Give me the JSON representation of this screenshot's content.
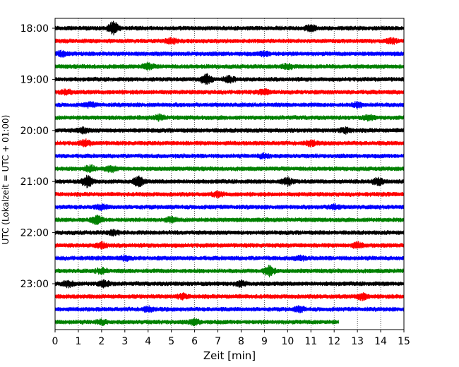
{
  "chart_data": {
    "type": "line",
    "subtype": "helicorder (stacked seismogram traces)",
    "xlabel": "Zeit  [min]",
    "ylabel": "UTC (Lokalzeit = UTC + 01:00)",
    "xlim": [
      0,
      15
    ],
    "x_ticks": [
      0,
      1,
      2,
      3,
      4,
      5,
      6,
      7,
      8,
      9,
      10,
      11,
      12,
      13,
      14,
      15
    ],
    "x_tick_labels": [
      "0",
      "1",
      "2",
      "3",
      "4",
      "5",
      "6",
      "7",
      "8",
      "9",
      "10",
      "11",
      "12",
      "13",
      "14",
      "15"
    ],
    "y_tick_labels": [
      "18:00",
      "19:00",
      "20:00",
      "21:00",
      "22:00",
      "23:00"
    ],
    "y_tick_rows": [
      0,
      4,
      8,
      12,
      16,
      20
    ],
    "grid": "vertical dotted lines at each minute",
    "trace_colors": [
      "#000000",
      "#ff0000",
      "#0000ff",
      "#008000"
    ],
    "line_start_minutes": [
      0,
      15,
      30,
      45,
      60,
      75,
      90,
      105,
      120,
      135,
      150,
      165,
      180,
      195,
      210,
      225,
      240,
      255,
      270,
      285,
      300,
      315,
      330,
      345
    ],
    "traces": [
      {
        "row": 0,
        "color": "#000000",
        "x_end": 15,
        "bursts": [
          {
            "x": 2.5,
            "amp": 0.9
          },
          {
            "x": 11.0,
            "amp": 0.4
          }
        ]
      },
      {
        "row": 1,
        "color": "#ff0000",
        "x_end": 15,
        "bursts": [
          {
            "x": 5.0,
            "amp": 0.35
          },
          {
            "x": 14.5,
            "amp": 0.35
          }
        ]
      },
      {
        "row": 2,
        "color": "#0000ff",
        "x_end": 15,
        "bursts": [
          {
            "x": 0.3,
            "amp": 0.35
          },
          {
            "x": 9.0,
            "amp": 0.3
          }
        ]
      },
      {
        "row": 3,
        "color": "#008000",
        "x_end": 15,
        "bursts": [
          {
            "x": 4.0,
            "amp": 0.4
          },
          {
            "x": 10.0,
            "amp": 0.35
          }
        ]
      },
      {
        "row": 4,
        "color": "#000000",
        "x_end": 15,
        "bursts": [
          {
            "x": 6.5,
            "amp": 0.75
          },
          {
            "x": 7.5,
            "amp": 0.4
          }
        ]
      },
      {
        "row": 5,
        "color": "#ff0000",
        "x_end": 15,
        "bursts": [
          {
            "x": 0.5,
            "amp": 0.3
          },
          {
            "x": 9.0,
            "amp": 0.3
          }
        ]
      },
      {
        "row": 6,
        "color": "#0000ff",
        "x_end": 15,
        "bursts": [
          {
            "x": 1.5,
            "amp": 0.3
          },
          {
            "x": 13.0,
            "amp": 0.3
          }
        ]
      },
      {
        "row": 7,
        "color": "#008000",
        "x_end": 15,
        "bursts": [
          {
            "x": 4.5,
            "amp": 0.35
          },
          {
            "x": 13.5,
            "amp": 0.3
          }
        ]
      },
      {
        "row": 8,
        "color": "#000000",
        "x_end": 15,
        "bursts": [
          {
            "x": 1.2,
            "amp": 0.35
          },
          {
            "x": 12.5,
            "amp": 0.35
          }
        ]
      },
      {
        "row": 9,
        "color": "#ff0000",
        "x_end": 15,
        "bursts": [
          {
            "x": 1.3,
            "amp": 0.4
          },
          {
            "x": 11.0,
            "amp": 0.35
          }
        ]
      },
      {
        "row": 10,
        "color": "#0000ff",
        "x_end": 15,
        "bursts": [
          {
            "x": 9.0,
            "amp": 0.3
          }
        ]
      },
      {
        "row": 11,
        "color": "#008000",
        "x_end": 15,
        "bursts": [
          {
            "x": 1.5,
            "amp": 0.45
          },
          {
            "x": 2.4,
            "amp": 0.4
          }
        ]
      },
      {
        "row": 12,
        "color": "#000000",
        "x_end": 15,
        "bursts": [
          {
            "x": 1.4,
            "amp": 0.8
          },
          {
            "x": 3.6,
            "amp": 0.7
          },
          {
            "x": 10.0,
            "amp": 0.5
          },
          {
            "x": 13.9,
            "amp": 0.5
          }
        ]
      },
      {
        "row": 13,
        "color": "#ff0000",
        "x_end": 15,
        "bursts": [
          {
            "x": 7.0,
            "amp": 0.3
          }
        ]
      },
      {
        "row": 14,
        "color": "#0000ff",
        "x_end": 15,
        "bursts": [
          {
            "x": 2.0,
            "amp": 0.3
          },
          {
            "x": 12.0,
            "amp": 0.3
          }
        ]
      },
      {
        "row": 15,
        "color": "#008000",
        "x_end": 15,
        "bursts": [
          {
            "x": 1.8,
            "amp": 0.6
          },
          {
            "x": 5.0,
            "amp": 0.35
          }
        ]
      },
      {
        "row": 16,
        "color": "#000000",
        "x_end": 15,
        "bursts": [
          {
            "x": 2.5,
            "amp": 0.3
          }
        ]
      },
      {
        "row": 17,
        "color": "#ff0000",
        "x_end": 15,
        "bursts": [
          {
            "x": 2.0,
            "amp": 0.4
          },
          {
            "x": 13.0,
            "amp": 0.35
          }
        ]
      },
      {
        "row": 18,
        "color": "#0000ff",
        "x_end": 15,
        "bursts": [
          {
            "x": 3.0,
            "amp": 0.3
          },
          {
            "x": 10.5,
            "amp": 0.3
          }
        ]
      },
      {
        "row": 19,
        "color": "#008000",
        "x_end": 15,
        "bursts": [
          {
            "x": 9.2,
            "amp": 0.7
          },
          {
            "x": 2.0,
            "amp": 0.35
          }
        ]
      },
      {
        "row": 20,
        "color": "#000000",
        "x_end": 15,
        "bursts": [
          {
            "x": 2.1,
            "amp": 0.45
          },
          {
            "x": 0.6,
            "amp": 0.4
          },
          {
            "x": 8.0,
            "amp": 0.35
          }
        ]
      },
      {
        "row": 21,
        "color": "#ff0000",
        "x_end": 15,
        "bursts": [
          {
            "x": 13.2,
            "amp": 0.45
          },
          {
            "x": 5.5,
            "amp": 0.3
          }
        ]
      },
      {
        "row": 22,
        "color": "#0000ff",
        "x_end": 15,
        "bursts": [
          {
            "x": 10.5,
            "amp": 0.35
          },
          {
            "x": 4.0,
            "amp": 0.3
          }
        ]
      },
      {
        "row": 23,
        "color": "#008000",
        "x_end": 12.2,
        "bursts": [
          {
            "x": 6.0,
            "amp": 0.35
          },
          {
            "x": 2.0,
            "amp": 0.3
          }
        ]
      }
    ]
  }
}
